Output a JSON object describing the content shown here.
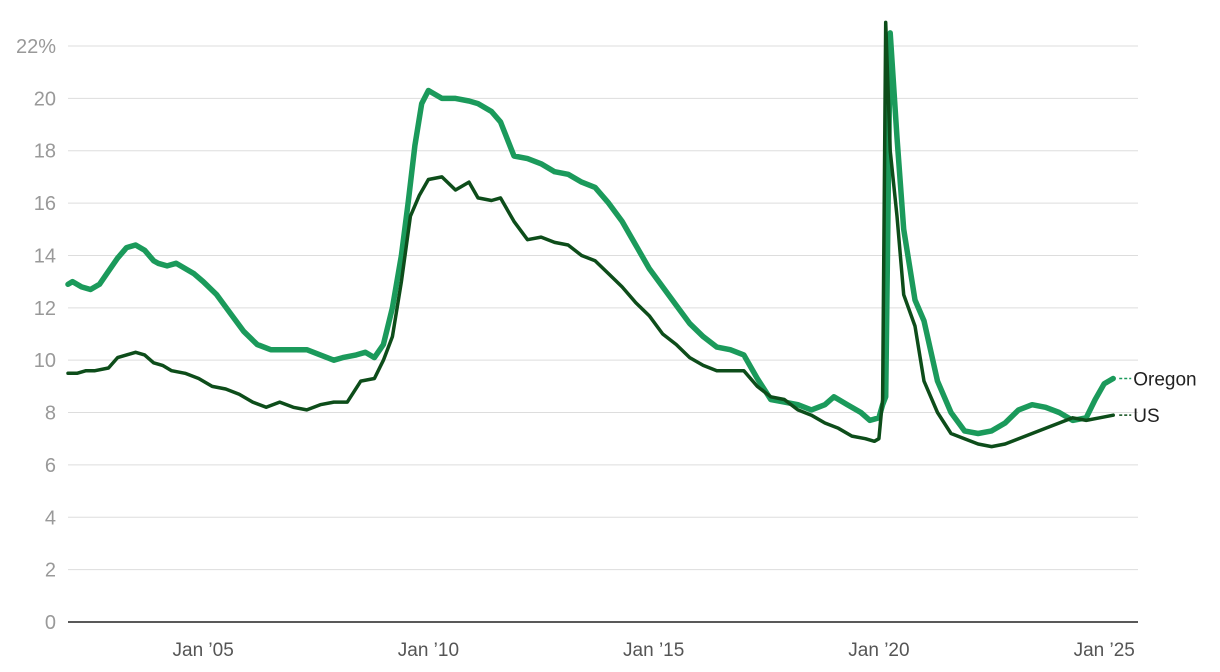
{
  "chart_data": {
    "type": "line",
    "title": "",
    "xlabel": "",
    "ylabel": "",
    "ylim": [
      0,
      22
    ],
    "yticks": [
      0,
      2,
      4,
      6,
      8,
      10,
      12,
      14,
      16,
      18,
      20,
      22
    ],
    "ytick_labels": [
      "0",
      "2",
      "4",
      "6",
      "8",
      "10",
      "12",
      "14",
      "16",
      "18",
      "20",
      "22%"
    ],
    "xlim": [
      2002.0,
      2025.75
    ],
    "xticks": [
      2005,
      2010,
      2015,
      2020,
      2025
    ],
    "xtick_labels": [
      "Jan ’05",
      "Jan ’10",
      "Jan ’15",
      "Jan ’20",
      "Jan ’25"
    ],
    "grid": true,
    "legend": "direct labels at line ends (right)",
    "series": [
      {
        "name": "Oregon",
        "color": "#1b9a5b",
        "x": [
          2002.0,
          2002.1,
          2002.3,
          2002.5,
          2002.7,
          2002.9,
          2003.1,
          2003.3,
          2003.5,
          2003.7,
          2003.9,
          2004.0,
          2004.2,
          2004.4,
          2004.6,
          2004.8,
          2005.0,
          2005.3,
          2005.6,
          2005.9,
          2006.2,
          2006.5,
          2006.8,
          2007.0,
          2007.3,
          2007.6,
          2007.9,
          2008.1,
          2008.4,
          2008.6,
          2008.8,
          2009.0,
          2009.2,
          2009.4,
          2009.55,
          2009.7,
          2009.85,
          2010.0,
          2010.3,
          2010.6,
          2010.9,
          2011.1,
          2011.4,
          2011.6,
          2011.9,
          2012.2,
          2012.5,
          2012.8,
          2013.1,
          2013.4,
          2013.7,
          2014.0,
          2014.3,
          2014.6,
          2014.9,
          2015.2,
          2015.5,
          2015.8,
          2016.1,
          2016.4,
          2016.7,
          2017.0,
          2017.3,
          2017.6,
          2017.9,
          2018.2,
          2018.5,
          2018.8,
          2019.0,
          2019.3,
          2019.6,
          2019.8,
          2020.0,
          2020.08,
          2020.15,
          2020.25,
          2020.4,
          2020.55,
          2020.8,
          2021.0,
          2021.3,
          2021.6,
          2021.9,
          2022.2,
          2022.5,
          2022.8,
          2023.1,
          2023.4,
          2023.7,
          2024.0,
          2024.3,
          2024.6,
          2024.8,
          2025.0,
          2025.2
        ],
        "values": [
          12.9,
          13.0,
          12.8,
          12.7,
          12.9,
          13.4,
          13.9,
          14.3,
          14.4,
          14.2,
          13.8,
          13.7,
          13.6,
          13.7,
          13.5,
          13.3,
          13.0,
          12.5,
          11.8,
          11.1,
          10.6,
          10.4,
          10.4,
          10.4,
          10.4,
          10.2,
          10.0,
          10.1,
          10.2,
          10.3,
          10.1,
          10.6,
          12.0,
          14.0,
          16.0,
          18.2,
          19.8,
          20.3,
          20.0,
          20.0,
          19.9,
          19.8,
          19.5,
          19.1,
          17.8,
          17.7,
          17.5,
          17.2,
          17.1,
          16.8,
          16.6,
          16.0,
          15.3,
          14.4,
          13.5,
          12.8,
          12.1,
          11.4,
          10.9,
          10.5,
          10.4,
          10.2,
          9.3,
          8.5,
          8.4,
          8.3,
          8.1,
          8.3,
          8.6,
          8.3,
          8.0,
          7.7,
          7.8,
          8.3,
          8.6,
          22.5,
          18.5,
          15.0,
          12.3,
          11.5,
          9.2,
          8.0,
          7.3,
          7.2,
          7.3,
          7.6,
          8.1,
          8.3,
          8.2,
          8.0,
          7.7,
          7.8,
          8.5,
          9.1,
          9.3
        ],
        "end_label": "Oregon"
      },
      {
        "name": "US",
        "color": "#0d4d1a",
        "x": [
          2002.0,
          2002.2,
          2002.4,
          2002.6,
          2002.9,
          2003.1,
          2003.3,
          2003.5,
          2003.7,
          2003.9,
          2004.1,
          2004.3,
          2004.6,
          2004.9,
          2005.2,
          2005.5,
          2005.8,
          2006.1,
          2006.4,
          2006.7,
          2007.0,
          2007.3,
          2007.6,
          2007.9,
          2008.2,
          2008.5,
          2008.8,
          2009.0,
          2009.2,
          2009.4,
          2009.6,
          2009.8,
          2010.0,
          2010.3,
          2010.6,
          2010.9,
          2011.1,
          2011.4,
          2011.6,
          2011.9,
          2012.2,
          2012.5,
          2012.8,
          2013.1,
          2013.4,
          2013.7,
          2014.0,
          2014.3,
          2014.6,
          2014.9,
          2015.2,
          2015.5,
          2015.8,
          2016.1,
          2016.4,
          2016.7,
          2017.0,
          2017.3,
          2017.6,
          2017.9,
          2018.2,
          2018.5,
          2018.8,
          2019.1,
          2019.4,
          2019.7,
          2019.9,
          2020.0,
          2020.08,
          2020.15,
          2020.25,
          2020.4,
          2020.55,
          2020.8,
          2021.0,
          2021.3,
          2021.6,
          2021.9,
          2022.2,
          2022.5,
          2022.8,
          2023.1,
          2023.4,
          2023.7,
          2024.0,
          2024.3,
          2024.6,
          2024.9,
          2025.2
        ],
        "values": [
          9.5,
          9.5,
          9.6,
          9.6,
          9.7,
          10.1,
          10.2,
          10.3,
          10.2,
          9.9,
          9.8,
          9.6,
          9.5,
          9.3,
          9.0,
          8.9,
          8.7,
          8.4,
          8.2,
          8.4,
          8.2,
          8.1,
          8.3,
          8.4,
          8.4,
          9.2,
          9.3,
          10.0,
          10.9,
          13.0,
          15.5,
          16.3,
          16.9,
          17.0,
          16.5,
          16.8,
          16.2,
          16.1,
          16.2,
          15.3,
          14.6,
          14.7,
          14.5,
          14.4,
          14.0,
          13.8,
          13.3,
          12.8,
          12.2,
          11.7,
          11.0,
          10.6,
          10.1,
          9.8,
          9.6,
          9.6,
          9.6,
          9.0,
          8.6,
          8.5,
          8.1,
          7.9,
          7.6,
          7.4,
          7.1,
          7.0,
          6.9,
          7.0,
          8.5,
          22.9,
          18.0,
          15.5,
          12.5,
          11.3,
          9.2,
          8.0,
          7.2,
          7.0,
          6.8,
          6.7,
          6.8,
          7.0,
          7.2,
          7.4,
          7.6,
          7.8,
          7.7,
          7.8,
          7.9
        ],
        "end_label": "US"
      }
    ]
  }
}
